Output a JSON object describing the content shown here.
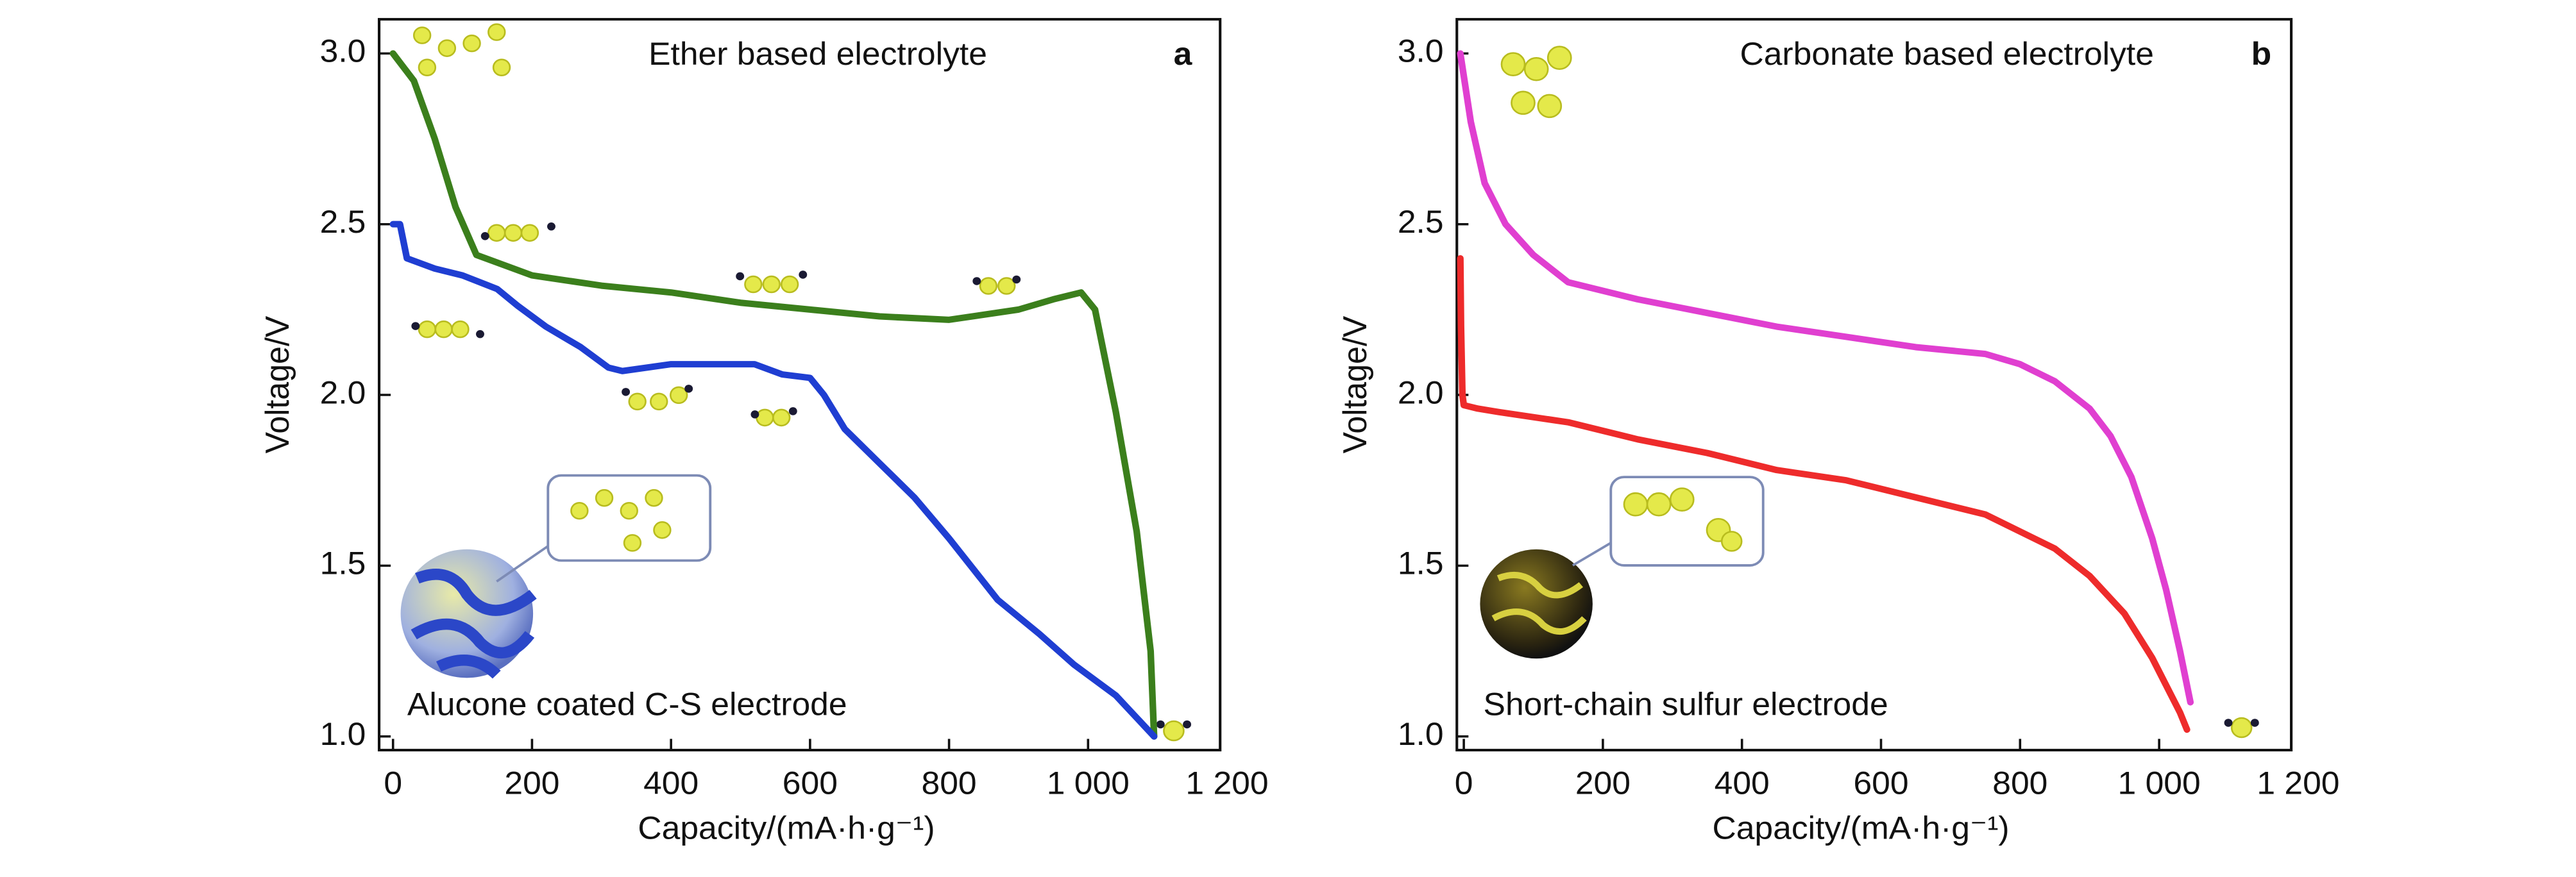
{
  "chart_data": [
    {
      "type": "line",
      "xlabel": "Capacity/(mA·h·g⁻¹)",
      "ylabel": "Voltage/V",
      "xlim": [
        -20,
        1190
      ],
      "ylim": [
        0.96,
        3.1
      ],
      "xticks": [
        0,
        200,
        400,
        600,
        800,
        {
          "value": 1000,
          "label": "1 000"
        },
        {
          "value": 1200,
          "label": "1 200"
        }
      ],
      "yticks": [
        {
          "value": 1,
          "label": "1.0"
        },
        1.5,
        {
          "value": 2,
          "label": "2.0"
        },
        2.5,
        {
          "value": 3,
          "label": "3.0"
        }
      ],
      "annotations": [
        {
          "text": "Ether based electrolyte"
        },
        {
          "text": "a"
        },
        {
          "text": "Alucone coated C-S electrode"
        }
      ],
      "series": [
        {
          "color": "#3b7f1c",
          "x": [
            0,
            30,
            60,
            90,
            120,
            200,
            300,
            400,
            500,
            600,
            700,
            800,
            900,
            950,
            990,
            1010,
            1040,
            1070,
            1090,
            1095
          ],
          "values": [
            3.0,
            2.92,
            2.75,
            2.55,
            2.41,
            2.35,
            2.32,
            2.3,
            2.27,
            2.25,
            2.23,
            2.22,
            2.25,
            2.28,
            2.3,
            2.25,
            1.95,
            1.6,
            1.25,
            1.0
          ]
        },
        {
          "color": "#1f3ed2",
          "x": [
            0,
            10,
            20,
            60,
            100,
            150,
            180,
            220,
            270,
            310,
            330,
            400,
            460,
            520,
            560,
            600,
            620,
            650,
            700,
            750,
            800,
            870,
            930,
            980,
            1040,
            1095
          ],
          "values": [
            2.5,
            2.5,
            2.4,
            2.37,
            2.35,
            2.31,
            2.26,
            2.2,
            2.14,
            2.08,
            2.07,
            2.09,
            2.09,
            2.09,
            2.06,
            2.05,
            2.0,
            1.9,
            1.8,
            1.7,
            1.58,
            1.4,
            1.3,
            1.21,
            1.12,
            1.0
          ]
        }
      ]
    },
    {
      "type": "line",
      "xlabel": "Capacity/(mA·h·g⁻¹)",
      "ylabel": "Voltage/V",
      "xlim": [
        -10,
        1190
      ],
      "ylim": [
        0.96,
        3.1
      ],
      "xticks": [
        0,
        200,
        400,
        600,
        800,
        {
          "value": 1000,
          "label": "1 000"
        },
        {
          "value": 1200,
          "label": "1 200"
        }
      ],
      "yticks": [
        {
          "value": 1,
          "label": "1.0"
        },
        1.5,
        {
          "value": 2,
          "label": "2.0"
        },
        2.5,
        {
          "value": 3,
          "label": "3.0"
        }
      ],
      "annotations": [
        {
          "text": "Carbonate based electrolyte"
        },
        {
          "text": "b"
        },
        {
          "text": "Short-chain sulfur electrode"
        }
      ],
      "series": [
        {
          "color": "#e03fd0",
          "x": [
            -5,
            10,
            30,
            60,
            100,
            150,
            250,
            350,
            450,
            550,
            650,
            750,
            800,
            850,
            900,
            930,
            960,
            990,
            1010,
            1030,
            1045
          ],
          "values": [
            3.0,
            2.8,
            2.62,
            2.5,
            2.41,
            2.33,
            2.28,
            2.24,
            2.2,
            2.17,
            2.14,
            2.12,
            2.09,
            2.04,
            1.96,
            1.88,
            1.76,
            1.58,
            1.43,
            1.25,
            1.1
          ]
        },
        {
          "color": "#ee2b2b",
          "x": [
            -5,
            -4,
            -2,
            0,
            20,
            50,
            150,
            250,
            350,
            450,
            550,
            650,
            750,
            850,
            900,
            950,
            990,
            1010,
            1030,
            1040
          ],
          "values": [
            2.4,
            2.2,
            2.0,
            1.97,
            1.96,
            1.95,
            1.92,
            1.87,
            1.83,
            1.78,
            1.75,
            1.7,
            1.65,
            1.55,
            1.47,
            1.36,
            1.23,
            1.15,
            1.07,
            1.02
          ]
        }
      ]
    }
  ]
}
